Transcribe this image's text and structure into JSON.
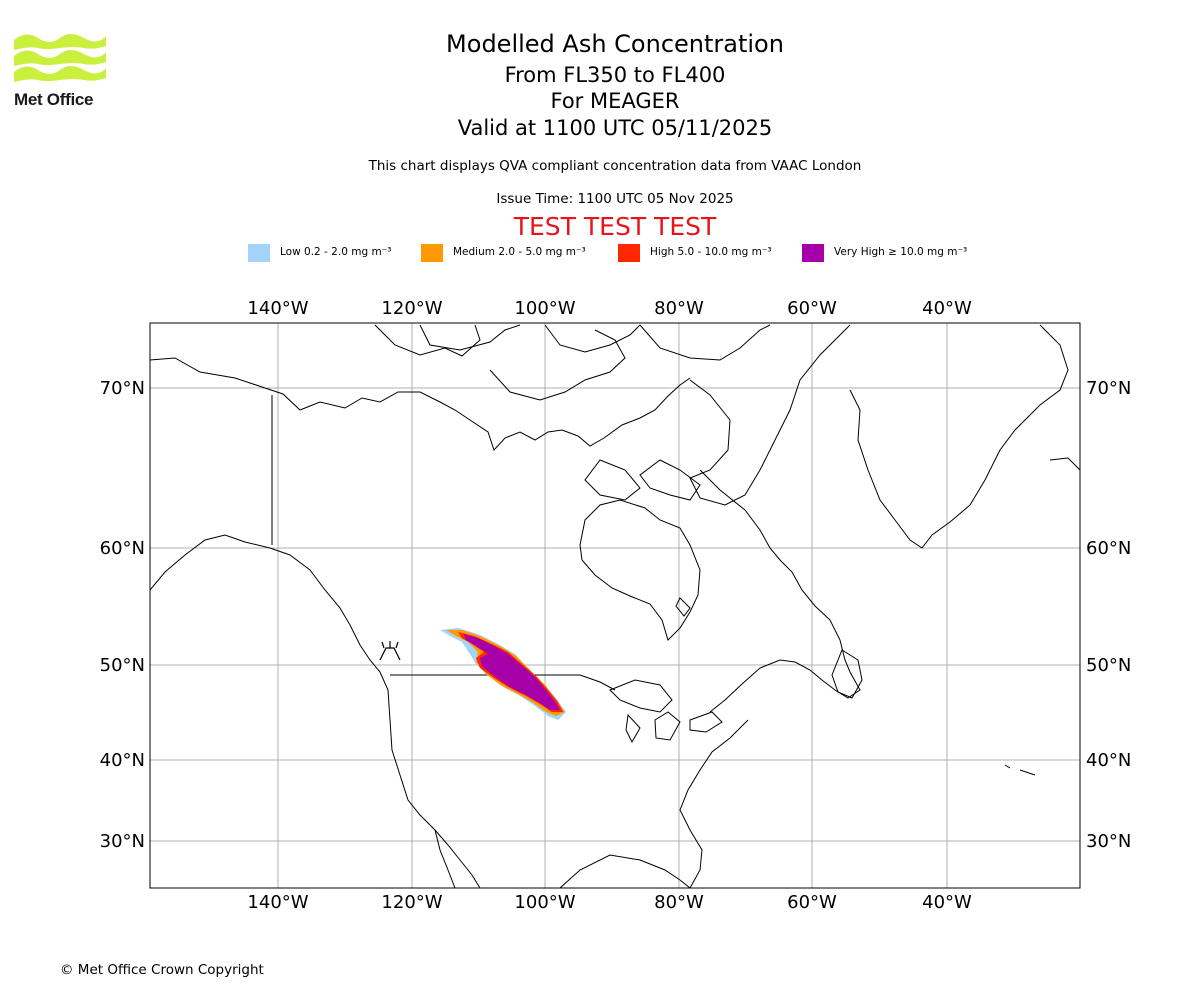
{
  "logo": {
    "text": "Met Office",
    "color": "#c8f03c"
  },
  "title": {
    "line1": "Modelled Ash Concentration",
    "line2": "From FL350 to FL400",
    "line3": "For MEAGER",
    "line4": "Valid at 1100 UTC 05/11/2025"
  },
  "subtitle": "This chart displays QVA compliant concentration data from VAAC London",
  "issue_time": "Issue Time: 1100 UTC 05 Nov 2025",
  "test_banner": "TEST TEST TEST",
  "legend": [
    {
      "label": "Low 0.2 - 2.0 mg m⁻³",
      "color": "#a2d4fa"
    },
    {
      "label": "Medium 2.0 - 5.0 mg m⁻³",
      "color": "#ff9900"
    },
    {
      "label": "High 5.0 - 10.0 mg m⁻³",
      "color": "#ff2600"
    },
    {
      "label": "Very High ≥ 10.0 mg m⁻³",
      "color": "#a800a8"
    }
  ],
  "map": {
    "lon_ticks": [
      "140°W",
      "120°W",
      "100°W",
      "80°W",
      "60°W",
      "40°W"
    ],
    "lat_ticks": [
      "70°N",
      "60°N",
      "50°N",
      "40°N",
      "30°N"
    ]
  },
  "footer": "© Met Office Crown Copyright"
}
